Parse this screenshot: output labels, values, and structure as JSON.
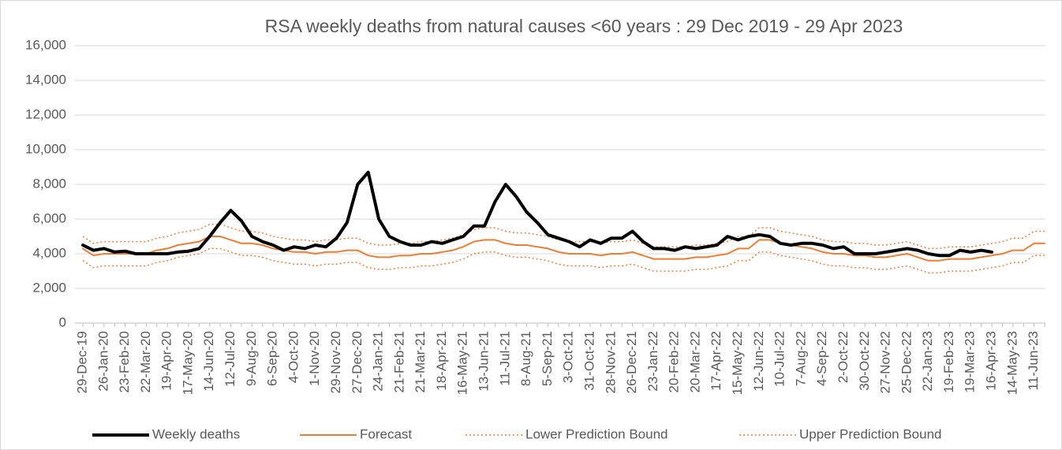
{
  "chart_data": {
    "type": "line",
    "title": "RSA weekly deaths from natural causes <60 years : 29 Dec 2019 - 29 Apr 2023",
    "categories": [
      "29-Dec-19",
      null,
      "26-Jan-20",
      null,
      "23-Feb-20",
      null,
      "22-Mar-20",
      null,
      "19-Apr-20",
      null,
      "17-May-20",
      null,
      "14-Jun-20",
      null,
      "12-Jul-20",
      null,
      "9-Aug-20",
      null,
      "6-Sep-20",
      null,
      "4-Oct-20",
      null,
      "1-Nov-20",
      null,
      "29-Nov-20",
      null,
      "27-Dec-20",
      null,
      "24-Jan-21",
      null,
      "21-Feb-21",
      null,
      "21-Mar-21",
      null,
      "18-Apr-21",
      null,
      "16-May-21",
      null,
      "13-Jun-21",
      null,
      "11-Jul-21",
      null,
      "8-Aug-21",
      null,
      "5-Sep-21",
      null,
      "3-Oct-21",
      null,
      "31-Oct-21",
      null,
      "28-Nov-21",
      null,
      "26-Dec-21",
      null,
      "23-Jan-22",
      null,
      "20-Feb-22",
      null,
      "20-Mar-22",
      null,
      "17-Apr-22",
      null,
      "15-May-22",
      null,
      "12-Jun-22",
      null,
      "10-Jul-22",
      null,
      "7-Aug-22",
      null,
      "4-Sep-22",
      null,
      "2-Oct-22",
      null,
      "30-Oct-22",
      null,
      "27-Nov-22",
      null,
      "25-Dec-22",
      null,
      "22-Jan-23",
      null,
      "19-Feb-23",
      null,
      "19-Mar-23",
      null,
      "16-Apr-23",
      null,
      "14-May-23",
      null,
      "11-Jun-23",
      null
    ],
    "series": [
      {
        "name": "Weekly deaths",
        "color": "#000000",
        "width": 4,
        "dash": "solid",
        "values": [
          4500,
          4200,
          4300,
          4100,
          4150,
          4000,
          4000,
          4000,
          4000,
          4100,
          4150,
          4300,
          5000,
          5800,
          6500,
          5900,
          5000,
          4700,
          4500,
          4200,
          4400,
          4300,
          4500,
          4400,
          4900,
          5800,
          8000,
          8700,
          6000,
          5000,
          4700,
          4500,
          4500,
          4700,
          4600,
          4800,
          5000,
          5600,
          5600,
          7000,
          8000,
          7300,
          6400,
          5800,
          5100,
          4900,
          4700,
          4400,
          4800,
          4600,
          4900,
          4900,
          5300,
          4700,
          4300,
          4300,
          4200,
          4400,
          4300,
          4400,
          4500,
          5000,
          4800,
          5000,
          5100,
          5000,
          4600,
          4500,
          4600,
          4600,
          4500,
          4300,
          4400,
          4000,
          4000,
          4000,
          4100,
          4200,
          4300,
          4200,
          4000,
          3900,
          3900,
          4200,
          4100,
          4200,
          4100,
          null,
          null,
          null,
          null,
          null
        ]
      },
      {
        "name": "Forecast",
        "color": "#ed7d31",
        "width": 2,
        "dash": "solid",
        "values": [
          4300,
          3900,
          4000,
          4000,
          4000,
          4000,
          4000,
          4200,
          4300,
          4500,
          4600,
          4700,
          5000,
          5000,
          4800,
          4600,
          4600,
          4500,
          4300,
          4200,
          4100,
          4100,
          4000,
          4100,
          4100,
          4200,
          4200,
          3900,
          3800,
          3800,
          3900,
          3900,
          4000,
          4000,
          4100,
          4200,
          4400,
          4700,
          4800,
          4800,
          4600,
          4500,
          4500,
          4400,
          4300,
          4100,
          4000,
          4000,
          4000,
          3900,
          4000,
          4000,
          4100,
          3900,
          3700,
          3700,
          3700,
          3700,
          3800,
          3800,
          3900,
          4000,
          4300,
          4300,
          4800,
          4800,
          4600,
          4500,
          4400,
          4300,
          4100,
          4000,
          4000,
          3900,
          3900,
          3800,
          3800,
          3900,
          4000,
          3800,
          3600,
          3600,
          3700,
          3700,
          3700,
          3800,
          3900,
          4000,
          4200,
          4200,
          4600,
          4600
        ]
      },
      {
        "name": "Lower Prediction Bound",
        "color": "#ed7d31",
        "width": 1.5,
        "dash": "dotted",
        "values": [
          3600,
          3200,
          3300,
          3300,
          3300,
          3300,
          3300,
          3500,
          3600,
          3800,
          3900,
          4000,
          4300,
          4300,
          4100,
          3900,
          3900,
          3800,
          3600,
          3500,
          3400,
          3400,
          3300,
          3400,
          3400,
          3500,
          3500,
          3200,
          3100,
          3100,
          3200,
          3200,
          3300,
          3300,
          3400,
          3500,
          3700,
          4000,
          4100,
          4100,
          3900,
          3800,
          3800,
          3700,
          3600,
          3400,
          3300,
          3300,
          3300,
          3200,
          3300,
          3300,
          3400,
          3200,
          3000,
          3000,
          3000,
          3000,
          3100,
          3100,
          3200,
          3300,
          3600,
          3600,
          4100,
          4100,
          3900,
          3800,
          3700,
          3600,
          3400,
          3300,
          3300,
          3200,
          3200,
          3100,
          3100,
          3200,
          3300,
          3100,
          2900,
          2900,
          3000,
          3000,
          3000,
          3100,
          3200,
          3300,
          3500,
          3500,
          3900,
          3900
        ]
      },
      {
        "name": "Upper Prediction Bound",
        "color": "#ed7d31",
        "width": 1.5,
        "dash": "dotted",
        "values": [
          5000,
          4600,
          4700,
          4700,
          4700,
          4700,
          4700,
          4900,
          5000,
          5200,
          5300,
          5400,
          5700,
          5700,
          5500,
          5300,
          5300,
          5200,
          5000,
          4900,
          4800,
          4800,
          4700,
          4800,
          4800,
          4900,
          4900,
          4600,
          4500,
          4500,
          4600,
          4600,
          4700,
          4700,
          4800,
          4900,
          5100,
          5400,
          5500,
          5500,
          5300,
          5200,
          5200,
          5100,
          5000,
          4800,
          4700,
          4700,
          4700,
          4600,
          4700,
          4700,
          4800,
          4600,
          4400,
          4400,
          4400,
          4400,
          4500,
          4500,
          4600,
          4700,
          5000,
          5000,
          5500,
          5500,
          5300,
          5200,
          5100,
          5000,
          4800,
          4700,
          4700,
          4600,
          4600,
          4500,
          4500,
          4600,
          4700,
          4500,
          4300,
          4300,
          4400,
          4400,
          4400,
          4500,
          4600,
          4700,
          4900,
          4900,
          5300,
          5300
        ]
      }
    ],
    "ylim": [
      0,
      16000
    ],
    "yticks": [
      0,
      {
        "value": 2000,
        "label": "2,000"
      },
      {
        "value": 4000,
        "label": "4,000"
      },
      {
        "value": 6000,
        "label": "6,000"
      },
      {
        "value": 8000,
        "label": "8,000"
      },
      {
        "value": 10000,
        "label": "10,000"
      },
      {
        "value": 12000,
        "label": "12,000"
      },
      {
        "value": 14000,
        "label": "14,000"
      },
      {
        "value": 16000,
        "label": "16,000"
      }
    ],
    "grid": true,
    "legend": "bottom"
  }
}
